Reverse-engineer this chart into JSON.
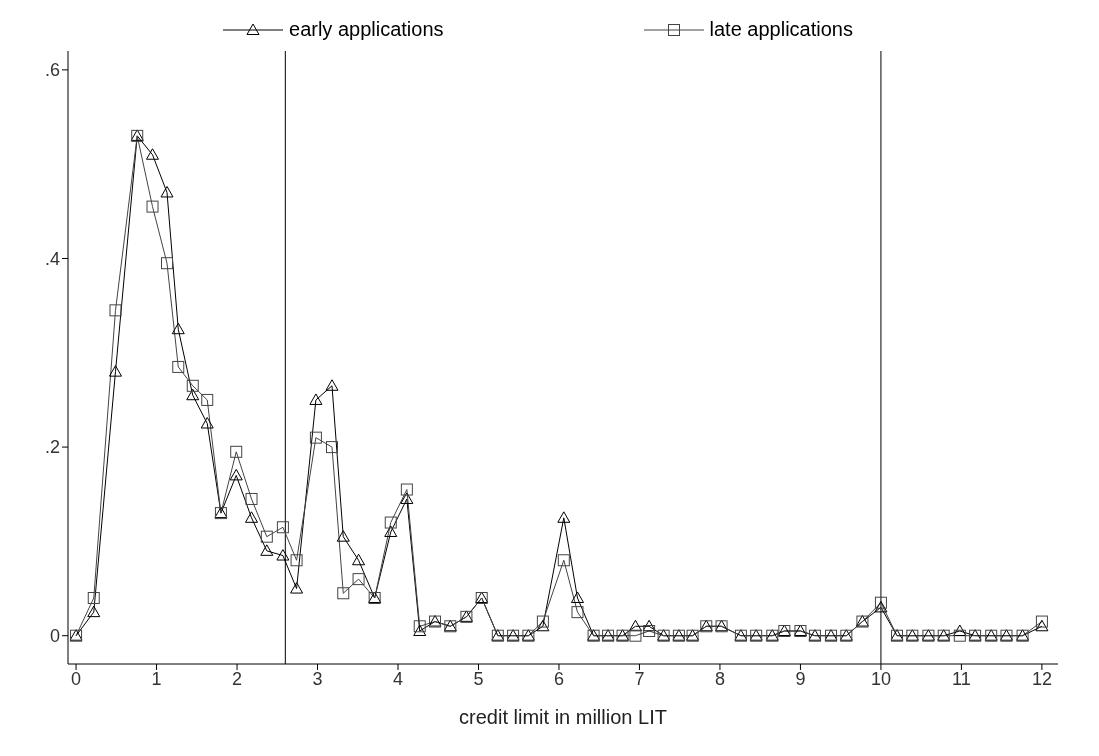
{
  "chart_data": {
    "type": "line",
    "xlabel": "credit limit in million LIT",
    "legend": "top",
    "x": [
      0,
      0.22,
      0.49,
      0.76,
      0.95,
      1.13,
      1.27,
      1.45,
      1.63,
      1.8,
      1.99,
      2.18,
      2.37,
      2.57,
      2.74,
      2.98,
      3.18,
      3.32,
      3.51,
      3.71,
      3.91,
      4.11,
      4.27,
      4.46,
      4.65,
      4.85,
      5.04,
      5.24,
      5.43,
      5.62,
      5.8,
      6.06,
      6.23,
      6.43,
      6.61,
      6.79,
      6.95,
      7.12,
      7.3,
      7.49,
      7.66,
      7.83,
      8.02,
      8.26,
      8.45,
      8.65,
      8.8,
      9.0,
      9.18,
      9.38,
      9.57,
      9.77,
      10.0,
      10.2,
      10.39,
      10.59,
      10.78,
      10.98,
      11.17,
      11.37,
      11.56,
      11.76,
      12.0
    ],
    "series": [
      {
        "name": "early applications",
        "color": "#000000",
        "marker": "triangle",
        "values": [
          0,
          0.025,
          0.28,
          0.53,
          0.51,
          0.47,
          0.325,
          0.255,
          0.225,
          0.13,
          0.17,
          0.125,
          0.09,
          0.085,
          0.05,
          0.25,
          0.265,
          0.105,
          0.08,
          0.04,
          0.11,
          0.145,
          0.005,
          0.015,
          0.01,
          0.02,
          0.04,
          0,
          0,
          0,
          0.01,
          0.125,
          0.04,
          0,
          0,
          0,
          0.01,
          0.01,
          0,
          0,
          0,
          0.01,
          0.01,
          0,
          0,
          0,
          0.005,
          0.005,
          0,
          0,
          0,
          0.015,
          0.03,
          0,
          0,
          0,
          0,
          0.005,
          0,
          0,
          0,
          0,
          0.01
        ]
      },
      {
        "name": "late applications",
        "color": "#444444",
        "marker": "square",
        "values": [
          0,
          0.04,
          0.345,
          0.53,
          0.455,
          0.395,
          0.285,
          0.265,
          0.25,
          0.13,
          0.195,
          0.145,
          0.105,
          0.115,
          0.08,
          0.21,
          0.2,
          0.045,
          0.06,
          0.04,
          0.12,
          0.155,
          0.01,
          0.015,
          0.01,
          0.02,
          0.04,
          0,
          0,
          0,
          0.015,
          0.08,
          0.025,
          0,
          0,
          0,
          0,
          0.005,
          0,
          0,
          0,
          0.01,
          0.01,
          0,
          0,
          0,
          0.005,
          0.005,
          0,
          0,
          0,
          0.015,
          0.035,
          0,
          0,
          0,
          0,
          0,
          0,
          0,
          0,
          0,
          0.015
        ]
      }
    ],
    "xlim": [
      -0.1,
      12.2
    ],
    "xticks": [
      0,
      1,
      2,
      3,
      4,
      5,
      6,
      7,
      8,
      9,
      10,
      11,
      12
    ],
    "ylim": [
      -0.03,
      0.62
    ],
    "yticks": [
      {
        "value": 0,
        "label": "0"
      },
      {
        "value": 0.2,
        "label": ".2"
      },
      {
        "value": 0.4,
        "label": ".4"
      },
      {
        "value": 0.6,
        "label": ".6"
      }
    ],
    "ref_lines": [
      {
        "axis": "x",
        "value": 2.6,
        "color": "#000000"
      },
      {
        "axis": "x",
        "value": 10,
        "color": "#000000"
      }
    ]
  }
}
